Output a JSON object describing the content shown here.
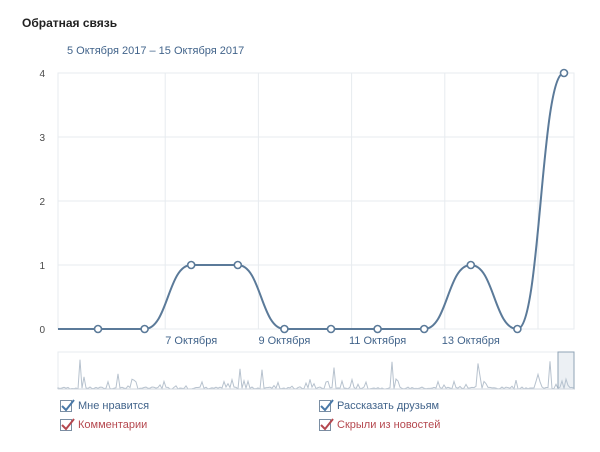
{
  "header": {
    "title": "Обратная связь",
    "range": "5 Октября 2017 – 15 Октября 2017"
  },
  "colors": {
    "line": "#5b7a99",
    "grid": "#e7ebef",
    "mini_line": "#b7c2ce",
    "check_blue": "#4a79a8",
    "check_red": "#b5484f",
    "text_blue": "#42648b",
    "text_red": "#b5484f"
  },
  "chart_data": {
    "type": "line",
    "title": "",
    "xlabel": "",
    "ylabel": "",
    "x": [
      "2017-10-05",
      "2017-10-06",
      "2017-10-07",
      "2017-10-08",
      "2017-10-09",
      "2017-10-10",
      "2017-10-11",
      "2017-10-12",
      "2017-10-13",
      "2017-10-14",
      "2017-10-15"
    ],
    "series": [
      {
        "name": "Мне нравится",
        "values": [
          0,
          0,
          1,
          1,
          0,
          0,
          0,
          0,
          1,
          0,
          4
        ]
      }
    ],
    "ylim": [
      0,
      4
    ],
    "yticks": [
      "0",
      "1",
      "2",
      "3",
      "4"
    ],
    "xticks": [
      {
        "x": "2017-10-07",
        "label": "7 Октября"
      },
      {
        "x": "2017-10-09",
        "label": "9 Октября"
      },
      {
        "x": "2017-10-11",
        "label": "11 Октября"
      },
      {
        "x": "2017-10-13",
        "label": "13 Октября"
      }
    ],
    "grid": true,
    "legend": "bottom"
  },
  "legend": [
    {
      "label": "Мне нравится",
      "checked": true,
      "color": "blue"
    },
    {
      "label": "Рассказать друзьям",
      "checked": true,
      "color": "blue"
    },
    {
      "label": "Комментарии",
      "checked": true,
      "color": "red"
    },
    {
      "label": "Скрыли из новостей",
      "checked": true,
      "color": "red"
    }
  ]
}
